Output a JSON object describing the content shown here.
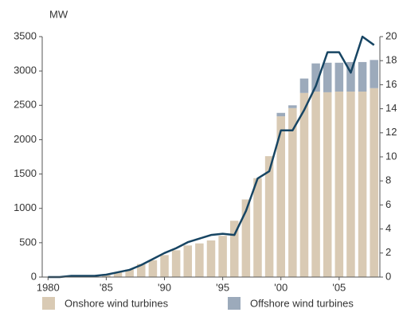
{
  "chart_data": {
    "type": "bar",
    "stacked": true,
    "y_unit_label": "MW",
    "categories": [
      "1980",
      null,
      null,
      null,
      null,
      "'85",
      null,
      null,
      null,
      null,
      "'90",
      null,
      null,
      null,
      null,
      "'95",
      null,
      null,
      null,
      null,
      "'00",
      null,
      null,
      null,
      null,
      "'05",
      null,
      null,
      null
    ],
    "series": [
      {
        "name": "Onshore wind turbines",
        "color": "#d9cab4",
        "values": [
          5,
          10,
          15,
          20,
          25,
          45,
          70,
          110,
          190,
          245,
          320,
          390,
          460,
          490,
          533,
          600,
          820,
          1130,
          1440,
          1760,
          2340,
          2460,
          2680,
          2700,
          2690,
          2700,
          2700,
          2700,
          2750
        ]
      },
      {
        "name": "Offshore wind turbines",
        "color": "#9caabb",
        "values": [
          0,
          0,
          0,
          0,
          0,
          0,
          0,
          0,
          0,
          0,
          0,
          0,
          0,
          0,
          0,
          0,
          0,
          0,
          0,
          0,
          50,
          40,
          210,
          410,
          430,
          420,
          430,
          430,
          410
        ]
      },
      {
        "type": "line",
        "axis": "y2",
        "color": "#174563",
        "values": [
          0,
          0,
          0.1,
          0.1,
          0.1,
          0.2,
          0.4,
          0.6,
          1.0,
          1.5,
          2.0,
          2.4,
          2.9,
          3.2,
          3.5,
          3.6,
          3.5,
          5.5,
          8.2,
          8.8,
          12.2,
          12.2,
          13.9,
          15.9,
          18.7,
          18.7,
          17.0,
          20.0,
          19.3
        ]
      }
    ],
    "ylim": [
      0,
      3500
    ],
    "yticks": [
      0,
      500,
      1000,
      1500,
      2000,
      2500,
      3000,
      3500
    ],
    "y2lim": [
      0,
      20
    ],
    "y2ticks": [
      0,
      2,
      4,
      6,
      8,
      10,
      12,
      14,
      16,
      18,
      20
    ],
    "grid": false,
    "legend": "bottom"
  }
}
